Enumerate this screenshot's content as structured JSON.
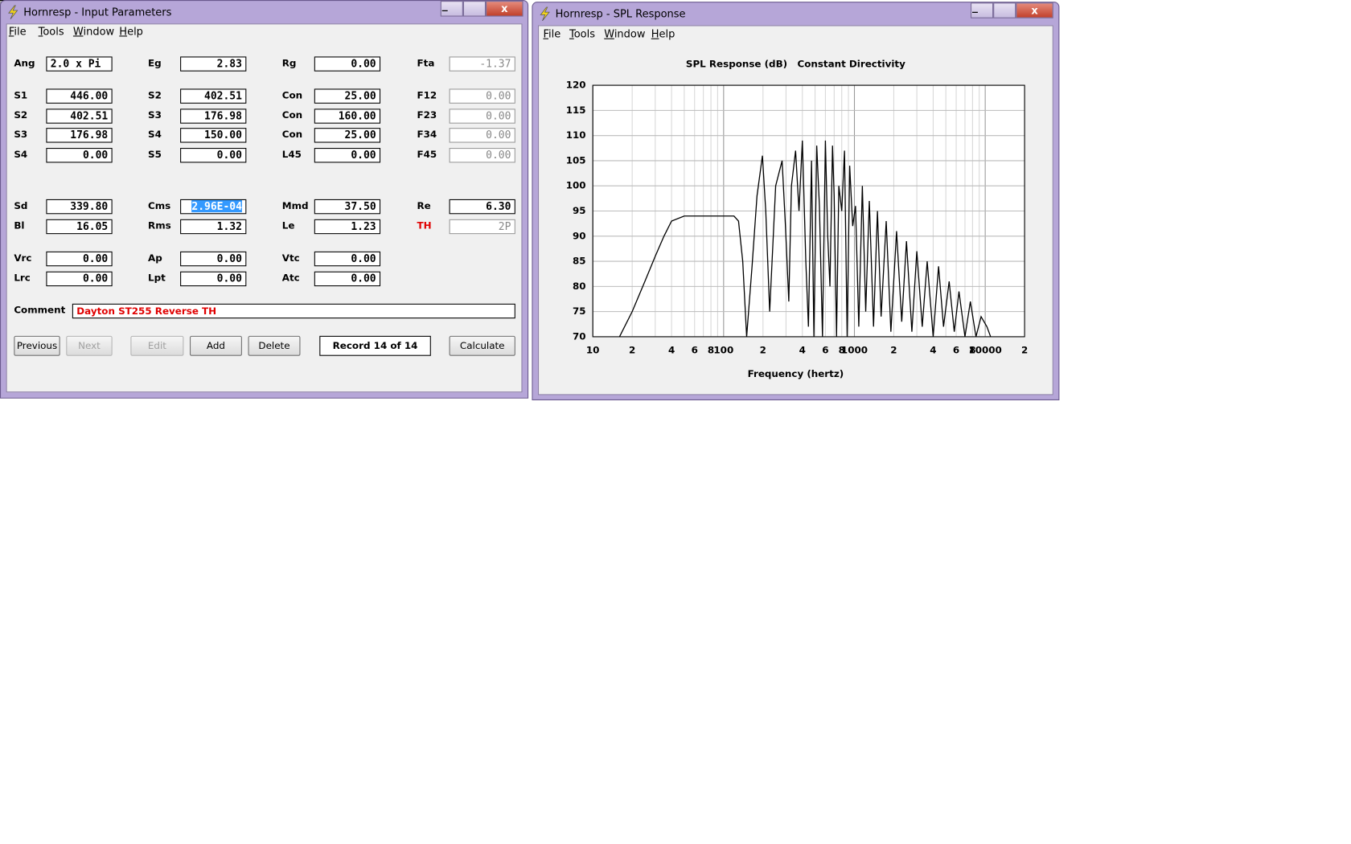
{
  "input_window": {
    "title": "Hornresp - Input Parameters",
    "menu": [
      "File",
      "Tools",
      "Window",
      "Help"
    ],
    "fields": [
      [
        {
          "label": "Ang",
          "value": "2.0 x Pi"
        },
        {
          "label": "Eg",
          "value": "2.83"
        },
        {
          "label": "Rg",
          "value": "0.00"
        },
        {
          "label": "Fta",
          "value": "-1.37",
          "disabled": true
        }
      ],
      [
        {
          "label": "S1",
          "value": "446.00"
        },
        {
          "label": "S2",
          "value": "402.51"
        },
        {
          "label": "Con",
          "value": "25.00"
        },
        {
          "label": "F12",
          "value": "0.00",
          "disabled": true
        }
      ],
      [
        {
          "label": "S2",
          "value": "402.51"
        },
        {
          "label": "S3",
          "value": "176.98"
        },
        {
          "label": "Con",
          "value": "160.00"
        },
        {
          "label": "F23",
          "value": "0.00",
          "disabled": true
        }
      ],
      [
        {
          "label": "S3",
          "value": "176.98"
        },
        {
          "label": "S4",
          "value": "150.00"
        },
        {
          "label": "Con",
          "value": "25.00"
        },
        {
          "label": "F34",
          "value": "0.00",
          "disabled": true
        }
      ],
      [
        {
          "label": "S4",
          "value": "0.00"
        },
        {
          "label": "S5",
          "value": "0.00"
        },
        {
          "label": "L45",
          "value": "0.00"
        },
        {
          "label": "F45",
          "value": "0.00",
          "disabled": true
        }
      ],
      [
        {
          "label": "Sd",
          "value": "339.80"
        },
        {
          "label": "Cms",
          "value": "2.96E-04",
          "selected": true
        },
        {
          "label": "Mmd",
          "value": "37.50"
        },
        {
          "label": "Re",
          "value": "6.30"
        }
      ],
      [
        {
          "label": "Bl",
          "value": "16.05"
        },
        {
          "label": "Rms",
          "value": "1.32"
        },
        {
          "label": "Le",
          "value": "1.23"
        },
        {
          "label": "TH",
          "value": "2P",
          "disabled": true,
          "label_color": "#e00000"
        }
      ],
      [
        {
          "label": "Vrc",
          "value": "0.00"
        },
        {
          "label": "Ap",
          "value": "0.00"
        },
        {
          "label": "Vtc",
          "value": "0.00"
        }
      ],
      [
        {
          "label": "Lrc",
          "value": "0.00"
        },
        {
          "label": "Lpt",
          "value": "0.00"
        },
        {
          "label": "Atc",
          "value": "0.00"
        }
      ]
    ],
    "comment": {
      "label": "Comment",
      "value": "Dayton ST255 Reverse TH",
      "color": "#e00000"
    },
    "buttons": [
      {
        "label": "Previous"
      },
      {
        "label": "Next",
        "disabled": true
      },
      {
        "label": "Edit",
        "disabled": true
      },
      {
        "label": "Add"
      },
      {
        "label": "Delete"
      },
      {
        "label": "Calculate"
      }
    ],
    "record": "Record 14 of 14"
  },
  "spl_window": {
    "title": "Hornresp - SPL Response",
    "menu": [
      "File",
      "Tools",
      "Window",
      "Help"
    ]
  },
  "chart_data": {
    "type": "line",
    "title": "SPL Response (dB)   Constant Directivity",
    "x_label": "Frequency (hertz)",
    "x": [
      16,
      20,
      25,
      30,
      35,
      40,
      50,
      60,
      80,
      100,
      120,
      130,
      140,
      150,
      165,
      180,
      198,
      210,
      225,
      250,
      280,
      297,
      315,
      330,
      355,
      377,
      400,
      425,
      445,
      470,
      490,
      515,
      540,
      570,
      600,
      625,
      650,
      680,
      700,
      730,
      760,
      800,
      840,
      880,
      920,
      970,
      1020,
      1080,
      1150,
      1220,
      1300,
      1400,
      1500,
      1600,
      1750,
      1900,
      2100,
      2300,
      2500,
      2750,
      3000,
      3300,
      3600,
      4000,
      4400,
      4800,
      5300,
      5800,
      6300,
      7000,
      7700,
      8500,
      9300,
      10300,
      11000
    ],
    "values": [
      70,
      75,
      81,
      86,
      90,
      93,
      94,
      94,
      94,
      94,
      94,
      93,
      85,
      70,
      84,
      98,
      106,
      95,
      75,
      100,
      105,
      92,
      77,
      100,
      107,
      95,
      109,
      85,
      72,
      105,
      70,
      108,
      96,
      70,
      109,
      90,
      80,
      108,
      98,
      70,
      100,
      95,
      107,
      70,
      104,
      92,
      96,
      72,
      100,
      75,
      97,
      72,
      95,
      74,
      93,
      71,
      91,
      73,
      89,
      71,
      87,
      72,
      85,
      70,
      84,
      72,
      81,
      71,
      79,
      70,
      77,
      70,
      74,
      72,
      70
    ],
    "color": "#000000",
    "log_x": true,
    "grid": true,
    "xlim": [
      10,
      20000
    ],
    "ylim": [
      70,
      120
    ],
    "xticks": [
      10,
      {
        "value": 20,
        "label": "2"
      },
      {
        "value": 40,
        "label": "4"
      },
      {
        "value": 60,
        "label": "6"
      },
      {
        "value": 80,
        "label": "8"
      },
      100,
      {
        "value": 200,
        "label": "2"
      },
      {
        "value": 400,
        "label": "4"
      },
      {
        "value": 600,
        "label": "6"
      },
      {
        "value": 800,
        "label": "8"
      },
      1000,
      {
        "value": 2000,
        "label": "2"
      },
      {
        "value": 4000,
        "label": "4"
      },
      {
        "value": 6000,
        "label": "6"
      },
      {
        "value": 8000,
        "label": "8"
      },
      10000,
      {
        "value": 20000,
        "label": "2"
      }
    ],
    "x_minor_ticks": [
      30,
      50,
      70,
      90,
      300,
      500,
      700,
      900,
      3000,
      5000,
      7000,
      9000
    ],
    "yticks": [
      70,
      75,
      80,
      85,
      90,
      95,
      100,
      105,
      110,
      115,
      120
    ]
  }
}
